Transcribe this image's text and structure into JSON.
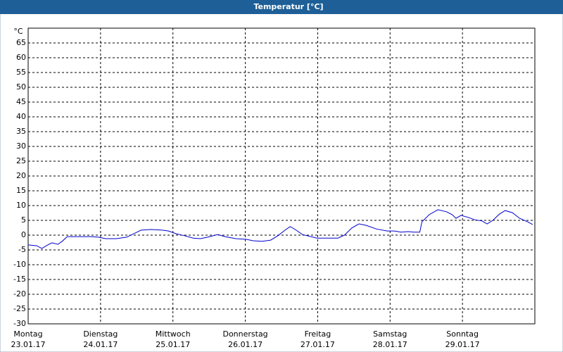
{
  "chart_data": {
    "type": "line",
    "title": "Temperatur [°C]",
    "y_unit": "°C",
    "color": "#0000cc",
    "grid": true,
    "xlim": [
      0,
      7
    ],
    "xticks": [
      {
        "value": 0,
        "label": "Montag"
      },
      {
        "value": 1,
        "label": "Dienstag"
      },
      {
        "value": 2,
        "label": "Mittwoch"
      },
      {
        "value": 3,
        "label": "Donnerstag"
      },
      {
        "value": 4,
        "label": "Freitag"
      },
      {
        "value": 5,
        "label": "Samstag"
      },
      {
        "value": 6,
        "label": "Sonntag"
      }
    ],
    "xtick_dates": [
      "23.01.17",
      "24.01.17",
      "25.01.17",
      "26.01.17",
      "27.01.17",
      "28.01.17",
      "29.01.17"
    ],
    "ylim": [
      -30,
      70
    ],
    "yticks": [
      -30,
      -25,
      -20,
      -15,
      -10,
      -5,
      0,
      5,
      10,
      15,
      20,
      25,
      30,
      35,
      40,
      45,
      50,
      55,
      60,
      65
    ],
    "x": [
      0,
      0.12,
      0.19,
      0.27,
      0.33,
      0.41,
      0.47,
      0.54,
      0.68,
      0.87,
      0.97,
      1.07,
      1.22,
      1.36,
      1.46,
      1.56,
      1.7,
      1.85,
      1.94,
      2.04,
      2.16,
      2.28,
      2.38,
      2.48,
      2.62,
      2.72,
      2.87,
      3.01,
      3.11,
      3.23,
      3.35,
      3.45,
      3.55,
      3.62,
      3.69,
      3.79,
      3.99,
      4.13,
      4.28,
      4.37,
      4.47,
      4.57,
      4.67,
      4.81,
      4.96,
      5.06,
      5.15,
      5.25,
      5.33,
      5.41,
      5.44,
      5.54,
      5.66,
      5.78,
      5.86,
      5.91,
      5.98,
      6.08,
      6.17,
      6.27,
      6.34,
      6.42,
      6.51,
      6.59,
      6.69,
      6.79,
      6.9,
      6.97
    ],
    "values": [
      -3.3,
      -3.6,
      -4.5,
      -3.3,
      -2.6,
      -3.1,
      -2.1,
      -0.5,
      -0.5,
      -0.5,
      -0.7,
      -1.2,
      -1.2,
      -0.7,
      0.5,
      1.7,
      1.9,
      1.7,
      1.4,
      0.5,
      -0.2,
      -1,
      -1.2,
      -0.7,
      0.2,
      -0.5,
      -1.2,
      -1.4,
      -1.9,
      -2.1,
      -1.7,
      -0.2,
      1.7,
      2.9,
      1.9,
      0.2,
      -1,
      -1,
      -1,
      0,
      2.4,
      3.8,
      3.3,
      2.1,
      1.4,
      1.4,
      1,
      1.2,
      1,
      1,
      4.5,
      6.9,
      8.6,
      7.9,
      6.9,
      5.7,
      6.7,
      6,
      5.2,
      4.8,
      3.8,
      5,
      7.1,
      8.3,
      7.6,
      5.7,
      4.5,
      3.6
    ]
  }
}
